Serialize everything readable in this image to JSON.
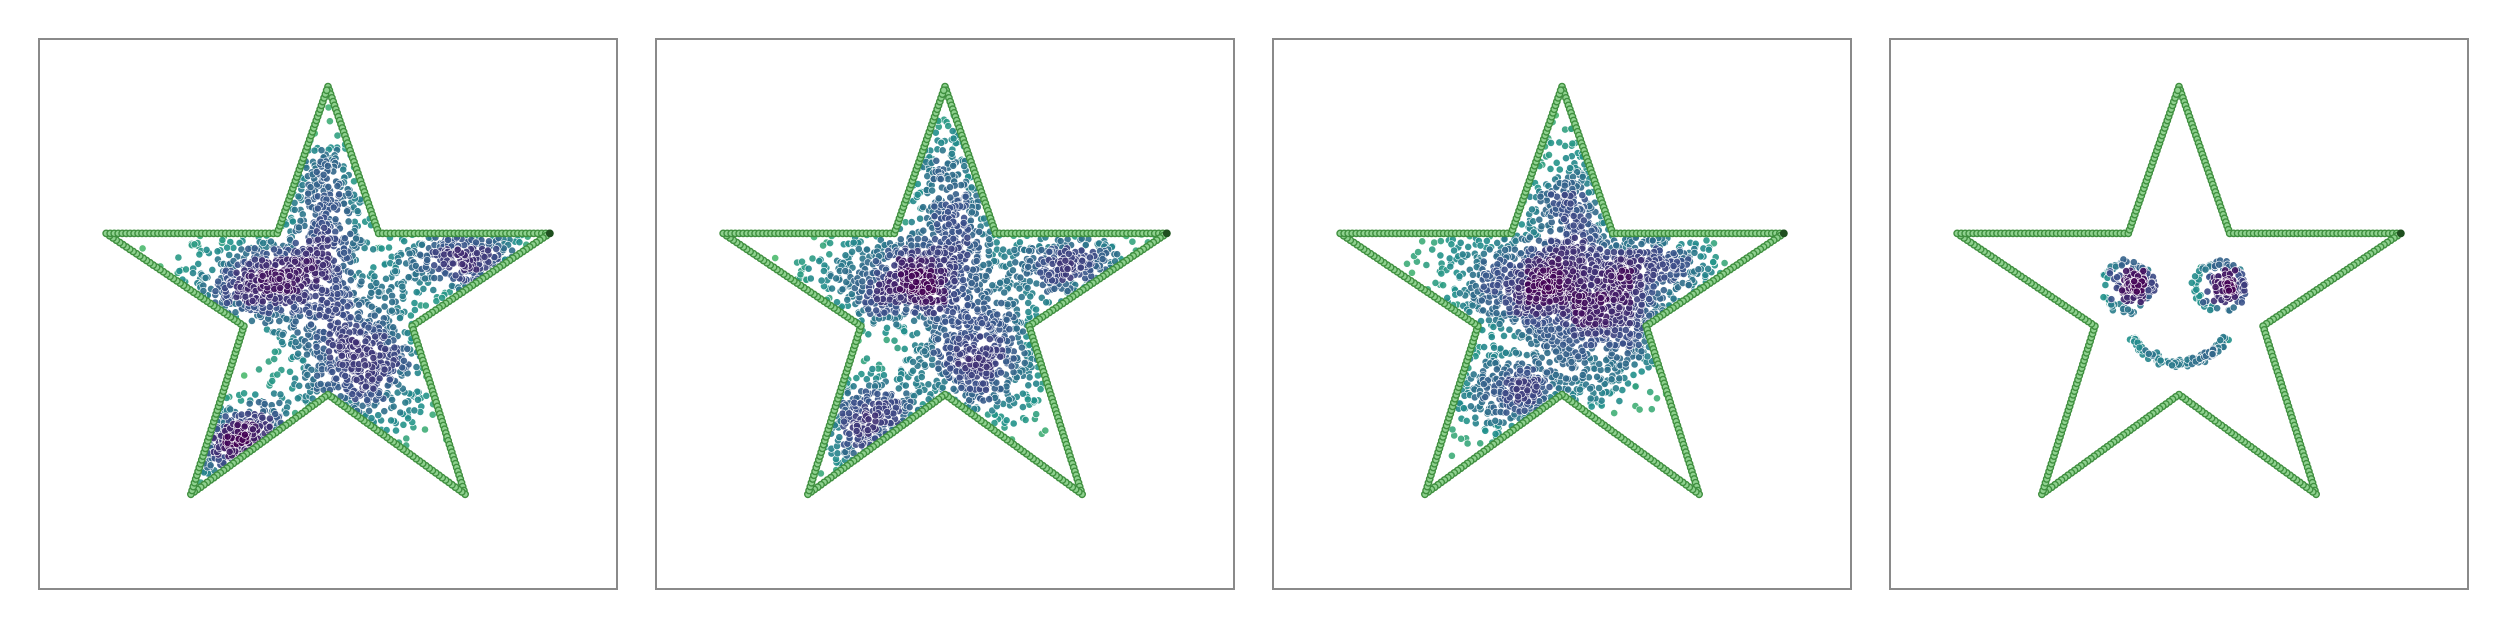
{
  "chart_data": [
    {
      "type": "scatter",
      "title": "",
      "xlabel": "",
      "ylabel": "",
      "xlim": [
        0,
        1
      ],
      "ylim": [
        0,
        1
      ],
      "grid": false,
      "legend": "none",
      "series": [
        {
          "role": "boundary",
          "shape": "star",
          "color": "#3f8f3f",
          "marker_face": "#8fd18f"
        },
        {
          "role": "samples",
          "colormap": "viridis",
          "clusters": [
            {
              "x": 0.41,
              "y": 0.56,
              "sx": 0.08,
              "sy": 0.045,
              "n": 650
            },
            {
              "x": 0.56,
              "y": 0.41,
              "sx": 0.065,
              "sy": 0.07,
              "n": 620
            },
            {
              "x": 0.5,
              "y": 0.68,
              "sx": 0.035,
              "sy": 0.08,
              "n": 330
            },
            {
              "x": 0.74,
              "y": 0.6,
              "sx": 0.07,
              "sy": 0.035,
              "n": 300
            },
            {
              "x": 0.36,
              "y": 0.26,
              "sx": 0.06,
              "sy": 0.04,
              "n": 300
            }
          ]
        }
      ]
    },
    {
      "type": "scatter",
      "title": "",
      "xlabel": "",
      "ylabel": "",
      "xlim": [
        0,
        1
      ],
      "ylim": [
        0,
        1
      ],
      "grid": false,
      "legend": "none",
      "series": [
        {
          "role": "boundary",
          "shape": "star",
          "color": "#3f8f3f",
          "marker_face": "#8fd18f"
        },
        {
          "role": "samples",
          "colormap": "viridis",
          "clusters": [
            {
              "x": 0.42,
              "y": 0.56,
              "sx": 0.08,
              "sy": 0.045,
              "n": 650
            },
            {
              "x": 0.56,
              "y": 0.42,
              "sx": 0.065,
              "sy": 0.07,
              "n": 600
            },
            {
              "x": 0.51,
              "y": 0.7,
              "sx": 0.035,
              "sy": 0.085,
              "n": 340
            },
            {
              "x": 0.72,
              "y": 0.59,
              "sx": 0.07,
              "sy": 0.035,
              "n": 300
            },
            {
              "x": 0.37,
              "y": 0.3,
              "sx": 0.06,
              "sy": 0.05,
              "n": 300
            }
          ]
        }
      ]
    },
    {
      "type": "scatter",
      "title": "",
      "xlabel": "",
      "ylabel": "",
      "xlim": [
        0,
        1
      ],
      "ylim": [
        0,
        1
      ],
      "grid": false,
      "legend": "none",
      "series": [
        {
          "role": "boundary",
          "shape": "star",
          "color": "#3f8f3f",
          "marker_face": "#8fd18f"
        },
        {
          "role": "samples",
          "colormap": "viridis",
          "clusters": [
            {
              "x": 0.45,
              "y": 0.56,
              "sx": 0.09,
              "sy": 0.055,
              "n": 750
            },
            {
              "x": 0.58,
              "y": 0.49,
              "sx": 0.08,
              "sy": 0.07,
              "n": 700
            },
            {
              "x": 0.42,
              "y": 0.36,
              "sx": 0.07,
              "sy": 0.05,
              "n": 350
            },
            {
              "x": 0.52,
              "y": 0.7,
              "sx": 0.04,
              "sy": 0.06,
              "n": 250
            },
            {
              "x": 0.66,
              "y": 0.59,
              "sx": 0.06,
              "sy": 0.035,
              "n": 250
            }
          ]
        }
      ]
    },
    {
      "type": "scatter",
      "title": "",
      "xlabel": "",
      "ylabel": "",
      "xlim": [
        0,
        1
      ],
      "ylim": [
        0,
        1
      ],
      "grid": false,
      "legend": "none",
      "series": [
        {
          "role": "boundary",
          "shape": "star",
          "color": "#3f8f3f",
          "marker_face": "#8fd18f"
        },
        {
          "role": "samples",
          "colormap": "viridis",
          "face": {
            "eyes": [
              {
                "x": 0.42,
                "y": 0.55,
                "r": 0.04
              },
              {
                "x": 0.58,
                "y": 0.55,
                "r": 0.04
              }
            ],
            "smile": {
              "x": 0.5,
              "y": 0.41,
              "r": 0.09
            }
          }
        }
      ]
    }
  ]
}
